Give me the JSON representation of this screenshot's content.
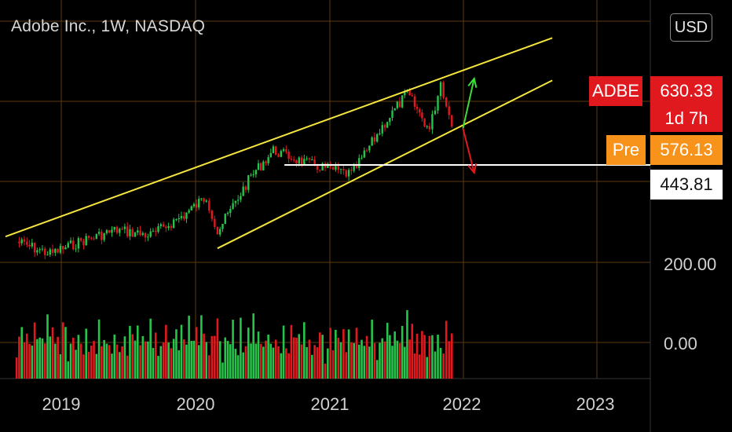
{
  "header": {
    "title": "Adobe Inc., 1W, NASDAQ",
    "currency_button": "USD"
  },
  "price_tags": {
    "last": {
      "symbol": "ADBE",
      "price": "630.33",
      "countdown": "1d 7h",
      "color": "#e0191f"
    },
    "pre": {
      "label": "Pre",
      "price": "576.13",
      "color": "#f7931a"
    },
    "level": {
      "price": "443.81",
      "color": "#ffffff"
    }
  },
  "chart_data": {
    "type": "line",
    "title": "Adobe Inc., 1W, NASDAQ",
    "xlabel": "",
    "ylabel": "",
    "x_ticks": [
      "2019",
      "2020",
      "2021",
      "2022",
      "2023"
    ],
    "y_ticks_visible": [
      "200.00",
      "0.00"
    ],
    "series": [
      {
        "name": "ADBE",
        "x": [
          "2018-09",
          "2018-12",
          "2019-03",
          "2019-06",
          "2019-09",
          "2019-12",
          "2020-02",
          "2020-03",
          "2020-06",
          "2020-08",
          "2020-11",
          "2021-03",
          "2021-06",
          "2021-08",
          "2021-10",
          "2021-11",
          "2021-12"
        ],
        "values": [
          258,
          225,
          262,
          290,
          275,
          330,
          380,
          285,
          435,
          505,
          470,
          440,
          580,
          660,
          560,
          690,
          570
        ]
      }
    ],
    "volume": {
      "note": "weekly volume histogram, green up / red down",
      "sample": [
        20,
        45,
        60,
        35,
        80,
        50,
        30,
        90,
        40,
        55,
        65,
        30,
        100,
        45,
        70,
        35,
        55,
        40,
        80,
        60
      ]
    },
    "annotations": {
      "channel_upper": {
        "from": [
          "2018-08",
          272
        ],
        "to": [
          "2022-09",
          810
        ],
        "color": "#f5e63c"
      },
      "channel_lower": {
        "from": [
          "2020-03",
          240
        ],
        "to": [
          "2022-09",
          695
        ],
        "color": "#f5e63c"
      },
      "horizontal_level": {
        "price": 443.81,
        "from": "2020-09",
        "color": "#ffffff"
      },
      "arrow_up": {
        "from": [
          "2022-01",
          565
        ],
        "to": [
          "2022-02",
          700
        ],
        "color": "#3cdc3c"
      },
      "arrow_down": {
        "from": [
          "2022-01",
          565
        ],
        "to": [
          "2022-02",
          445
        ],
        "color": "#e0191f"
      }
    },
    "grid": true,
    "colors": {
      "up": "#26c44a",
      "down": "#e0191f",
      "grid": "#5a3a12",
      "background": "#000000"
    }
  }
}
